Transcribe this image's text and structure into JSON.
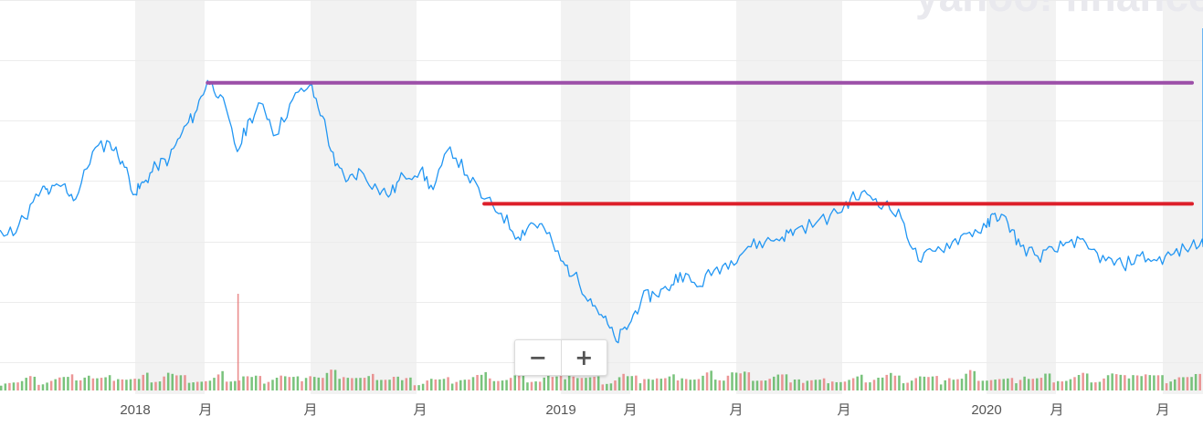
{
  "watermark": "yahoo! finance",
  "zoom": {
    "minus_label": "−",
    "plus_label": "+"
  },
  "chart_data": {
    "type": "line",
    "title": "",
    "xlabel": "",
    "ylabel": "",
    "x_tick_labels": [
      "2018",
      "月",
      "月",
      "月",
      "2019",
      "月",
      "月",
      "月",
      "2020",
      "月",
      "月"
    ],
    "grid": true,
    "series": [
      {
        "values": [
          [
            2017.42,
            42
          ],
          [
            2017.45,
            45
          ],
          [
            2017.5,
            50
          ],
          [
            2017.55,
            53
          ],
          [
            2017.6,
            52
          ],
          [
            2017.65,
            54
          ],
          [
            2017.7,
            53
          ],
          [
            2017.74,
            60
          ],
          [
            2017.78,
            72
          ],
          [
            2017.8,
            71
          ],
          [
            2017.83,
            74
          ],
          [
            2017.86,
            68
          ],
          [
            2017.9,
            88
          ],
          [
            2017.94,
            92
          ],
          [
            2017.97,
            84
          ],
          [
            2018.0,
            70
          ],
          [
            2018.02,
            75
          ],
          [
            2018.05,
            82
          ],
          [
            2018.08,
            85
          ],
          [
            2018.11,
            96
          ],
          [
            2018.14,
            104
          ],
          [
            2018.17,
            118
          ],
          [
            2018.2,
            112
          ],
          [
            2018.24,
            88
          ],
          [
            2018.27,
            102
          ],
          [
            2018.3,
            108
          ],
          [
            2018.33,
            95
          ],
          [
            2018.37,
            110
          ],
          [
            2018.41,
            116
          ],
          [
            2018.44,
            103
          ],
          [
            2018.47,
            82
          ],
          [
            2018.5,
            76
          ],
          [
            2018.53,
            80
          ],
          [
            2018.57,
            72
          ],
          [
            2018.6,
            70
          ],
          [
            2018.63,
            78
          ],
          [
            2018.67,
            80
          ],
          [
            2018.7,
            72
          ],
          [
            2018.74,
            90
          ],
          [
            2018.78,
            78
          ],
          [
            2018.82,
            68
          ],
          [
            2018.86,
            62
          ],
          [
            2018.9,
            52
          ],
          [
            2018.93,
            58
          ],
          [
            2018.96,
            56
          ],
          [
            2019.0,
            42
          ],
          [
            2019.03,
            36
          ],
          [
            2019.07,
            26
          ],
          [
            2019.1,
            18
          ],
          [
            2019.13,
            8
          ],
          [
            2019.16,
            15
          ],
          [
            2019.19,
            26
          ],
          [
            2019.22,
            28
          ],
          [
            2019.25,
            30
          ],
          [
            2019.28,
            37
          ],
          [
            2019.32,
            31
          ],
          [
            2019.36,
            38
          ],
          [
            2019.4,
            42
          ],
          [
            2019.44,
            48
          ],
          [
            2019.48,
            50
          ],
          [
            2019.52,
            52
          ],
          [
            2019.55,
            55
          ],
          [
            2019.6,
            58
          ],
          [
            2019.65,
            62
          ],
          [
            2019.68,
            68
          ],
          [
            2019.72,
            70
          ],
          [
            2019.76,
            66
          ],
          [
            2019.8,
            60
          ],
          [
            2019.84,
            42
          ],
          [
            2019.88,
            46
          ],
          [
            2019.92,
            50
          ],
          [
            2019.96,
            54
          ],
          [
            2020.0,
            56
          ],
          [
            2020.02,
            62
          ],
          [
            2020.05,
            58
          ],
          [
            2020.08,
            48
          ],
          [
            2020.12,
            44
          ],
          [
            2020.16,
            46
          ],
          [
            2020.2,
            51
          ],
          [
            2020.24,
            47
          ],
          [
            2020.28,
            42
          ],
          [
            2020.32,
            40
          ],
          [
            2020.36,
            44
          ],
          [
            2020.4,
            42
          ],
          [
            2020.44,
            45
          ],
          [
            2020.48,
            48
          ],
          [
            2020.52,
            50
          ],
          [
            2020.56,
            64
          ],
          [
            2020.6,
            70
          ],
          [
            2020.64,
            82
          ],
          [
            2020.68,
            72
          ],
          [
            2020.72,
            84
          ],
          [
            2020.76,
            86
          ],
          [
            2020.8,
            80
          ],
          [
            2020.84,
            66
          ],
          [
            2020.86,
            70
          ],
          [
            2020.88,
            48
          ],
          [
            2020.9,
            62
          ],
          [
            2020.94,
            68
          ],
          [
            2020.98,
            78
          ],
          [
            2021.02,
            84
          ],
          [
            2021.06,
            92
          ],
          [
            2021.1,
            96
          ],
          [
            2021.14,
            100
          ],
          [
            2021.18,
            98
          ],
          [
            2021.22,
            110
          ],
          [
            2021.25,
            130
          ],
          [
            2021.28,
            140
          ]
        ]
      }
    ],
    "annotations": [
      {
        "type": "horizontal-line",
        "color": "#9c4fa8",
        "x_start": 2018.17,
        "x_end": 2021.25,
        "y": 117
      },
      {
        "type": "horizontal-line",
        "color": "#dd1f2a",
        "x_start": 2018.82,
        "x_end": 2021.01,
        "y": 66
      }
    ],
    "volume": [
      24,
      30,
      28,
      26,
      22,
      24,
      36,
      40,
      32,
      28,
      26,
      30,
      34,
      38,
      42,
      40,
      36,
      44,
      50,
      46,
      55,
      60,
      42,
      38,
      36,
      34,
      40,
      48,
      52,
      46,
      40,
      38,
      36,
      30,
      46,
      52,
      40,
      38,
      36,
      56,
      70,
      60,
      48,
      44,
      40,
      38,
      36,
      34,
      30,
      28,
      26,
      36,
      48,
      60,
      44,
      40,
      38,
      36,
      52,
      48,
      40,
      42,
      36,
      34,
      38,
      44,
      50,
      56,
      48,
      40,
      36,
      34,
      46,
      58,
      62,
      54,
      46,
      40,
      60,
      72,
      66,
      58,
      62,
      54,
      48,
      44,
      40,
      36,
      40,
      46,
      52,
      48,
      44,
      40,
      50,
      46
    ],
    "colors": {
      "line": "#2196f3",
      "volume_up": "#4caf50",
      "volume_down": "#e57373"
    }
  }
}
